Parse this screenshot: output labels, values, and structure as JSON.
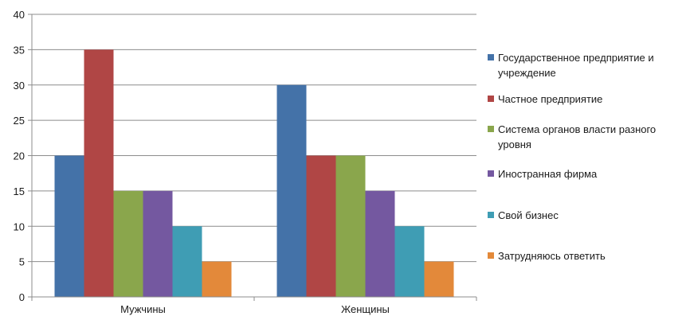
{
  "chart_data": {
    "type": "bar",
    "title": "",
    "xlabel": "",
    "ylabel": "",
    "ylim": [
      0,
      40
    ],
    "ytick_step": 5,
    "grid": true,
    "legend_position": "right",
    "categories": [
      "Мужчины",
      "Женщины"
    ],
    "series": [
      {
        "name": "Государственное предприятие и учреждение",
        "color": "#4472a8",
        "values": [
          20,
          30
        ]
      },
      {
        "name": "Частное предприятие",
        "color": "#b04645",
        "values": [
          35,
          20
        ]
      },
      {
        "name": "Система органов власти разного уровня",
        "color": "#8aa64c",
        "values": [
          15,
          20
        ]
      },
      {
        "name": "Иностранная фирма",
        "color": "#7458a0",
        "values": [
          15,
          15
        ]
      },
      {
        "name": "Свой бизнес",
        "color": "#3f9db4",
        "values": [
          10,
          10
        ]
      },
      {
        "name": "Затрудняюсь ответить",
        "color": "#e3893a",
        "values": [
          5,
          5
        ]
      }
    ]
  }
}
